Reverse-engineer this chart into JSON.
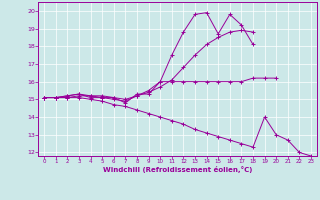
{
  "title": "",
  "xlabel": "Windchill (Refroidissement éolien,°C)",
  "bg_color": "#cce8e8",
  "line_color": "#990099",
  "xlim": [
    -0.5,
    23.5
  ],
  "ylim": [
    11.8,
    20.5
  ],
  "xticks": [
    0,
    1,
    2,
    3,
    4,
    5,
    6,
    7,
    8,
    9,
    10,
    11,
    12,
    13,
    14,
    15,
    16,
    17,
    18,
    19,
    20,
    21,
    22,
    23
  ],
  "yticks": [
    12,
    13,
    14,
    15,
    16,
    17,
    18,
    19,
    20
  ],
  "series": [
    [
      15.1,
      15.1,
      15.1,
      15.2,
      15.2,
      15.2,
      15.1,
      14.8,
      15.3,
      15.3,
      16.0,
      16.0,
      16.0,
      16.0,
      16.0,
      16.0,
      16.0,
      16.0,
      16.2,
      16.2,
      16.2,
      null,
      null,
      null
    ],
    [
      15.1,
      15.1,
      15.2,
      15.3,
      15.1,
      15.1,
      15.0,
      14.9,
      15.2,
      15.5,
      16.0,
      17.5,
      18.8,
      19.8,
      19.9,
      18.7,
      19.8,
      19.2,
      18.1,
      null,
      null,
      null,
      null,
      null
    ],
    [
      15.1,
      15.1,
      15.2,
      15.3,
      15.2,
      15.1,
      15.1,
      15.0,
      15.2,
      15.4,
      15.7,
      16.1,
      16.8,
      17.5,
      18.1,
      18.5,
      18.8,
      18.9,
      18.8,
      null,
      null,
      null,
      null,
      null
    ],
    [
      15.1,
      15.1,
      15.1,
      15.1,
      15.0,
      14.9,
      14.7,
      14.6,
      14.4,
      14.2,
      14.0,
      13.8,
      13.6,
      13.3,
      13.1,
      12.9,
      12.7,
      12.5,
      12.3,
      14.0,
      13.0,
      12.7,
      12.0,
      11.8
    ]
  ]
}
